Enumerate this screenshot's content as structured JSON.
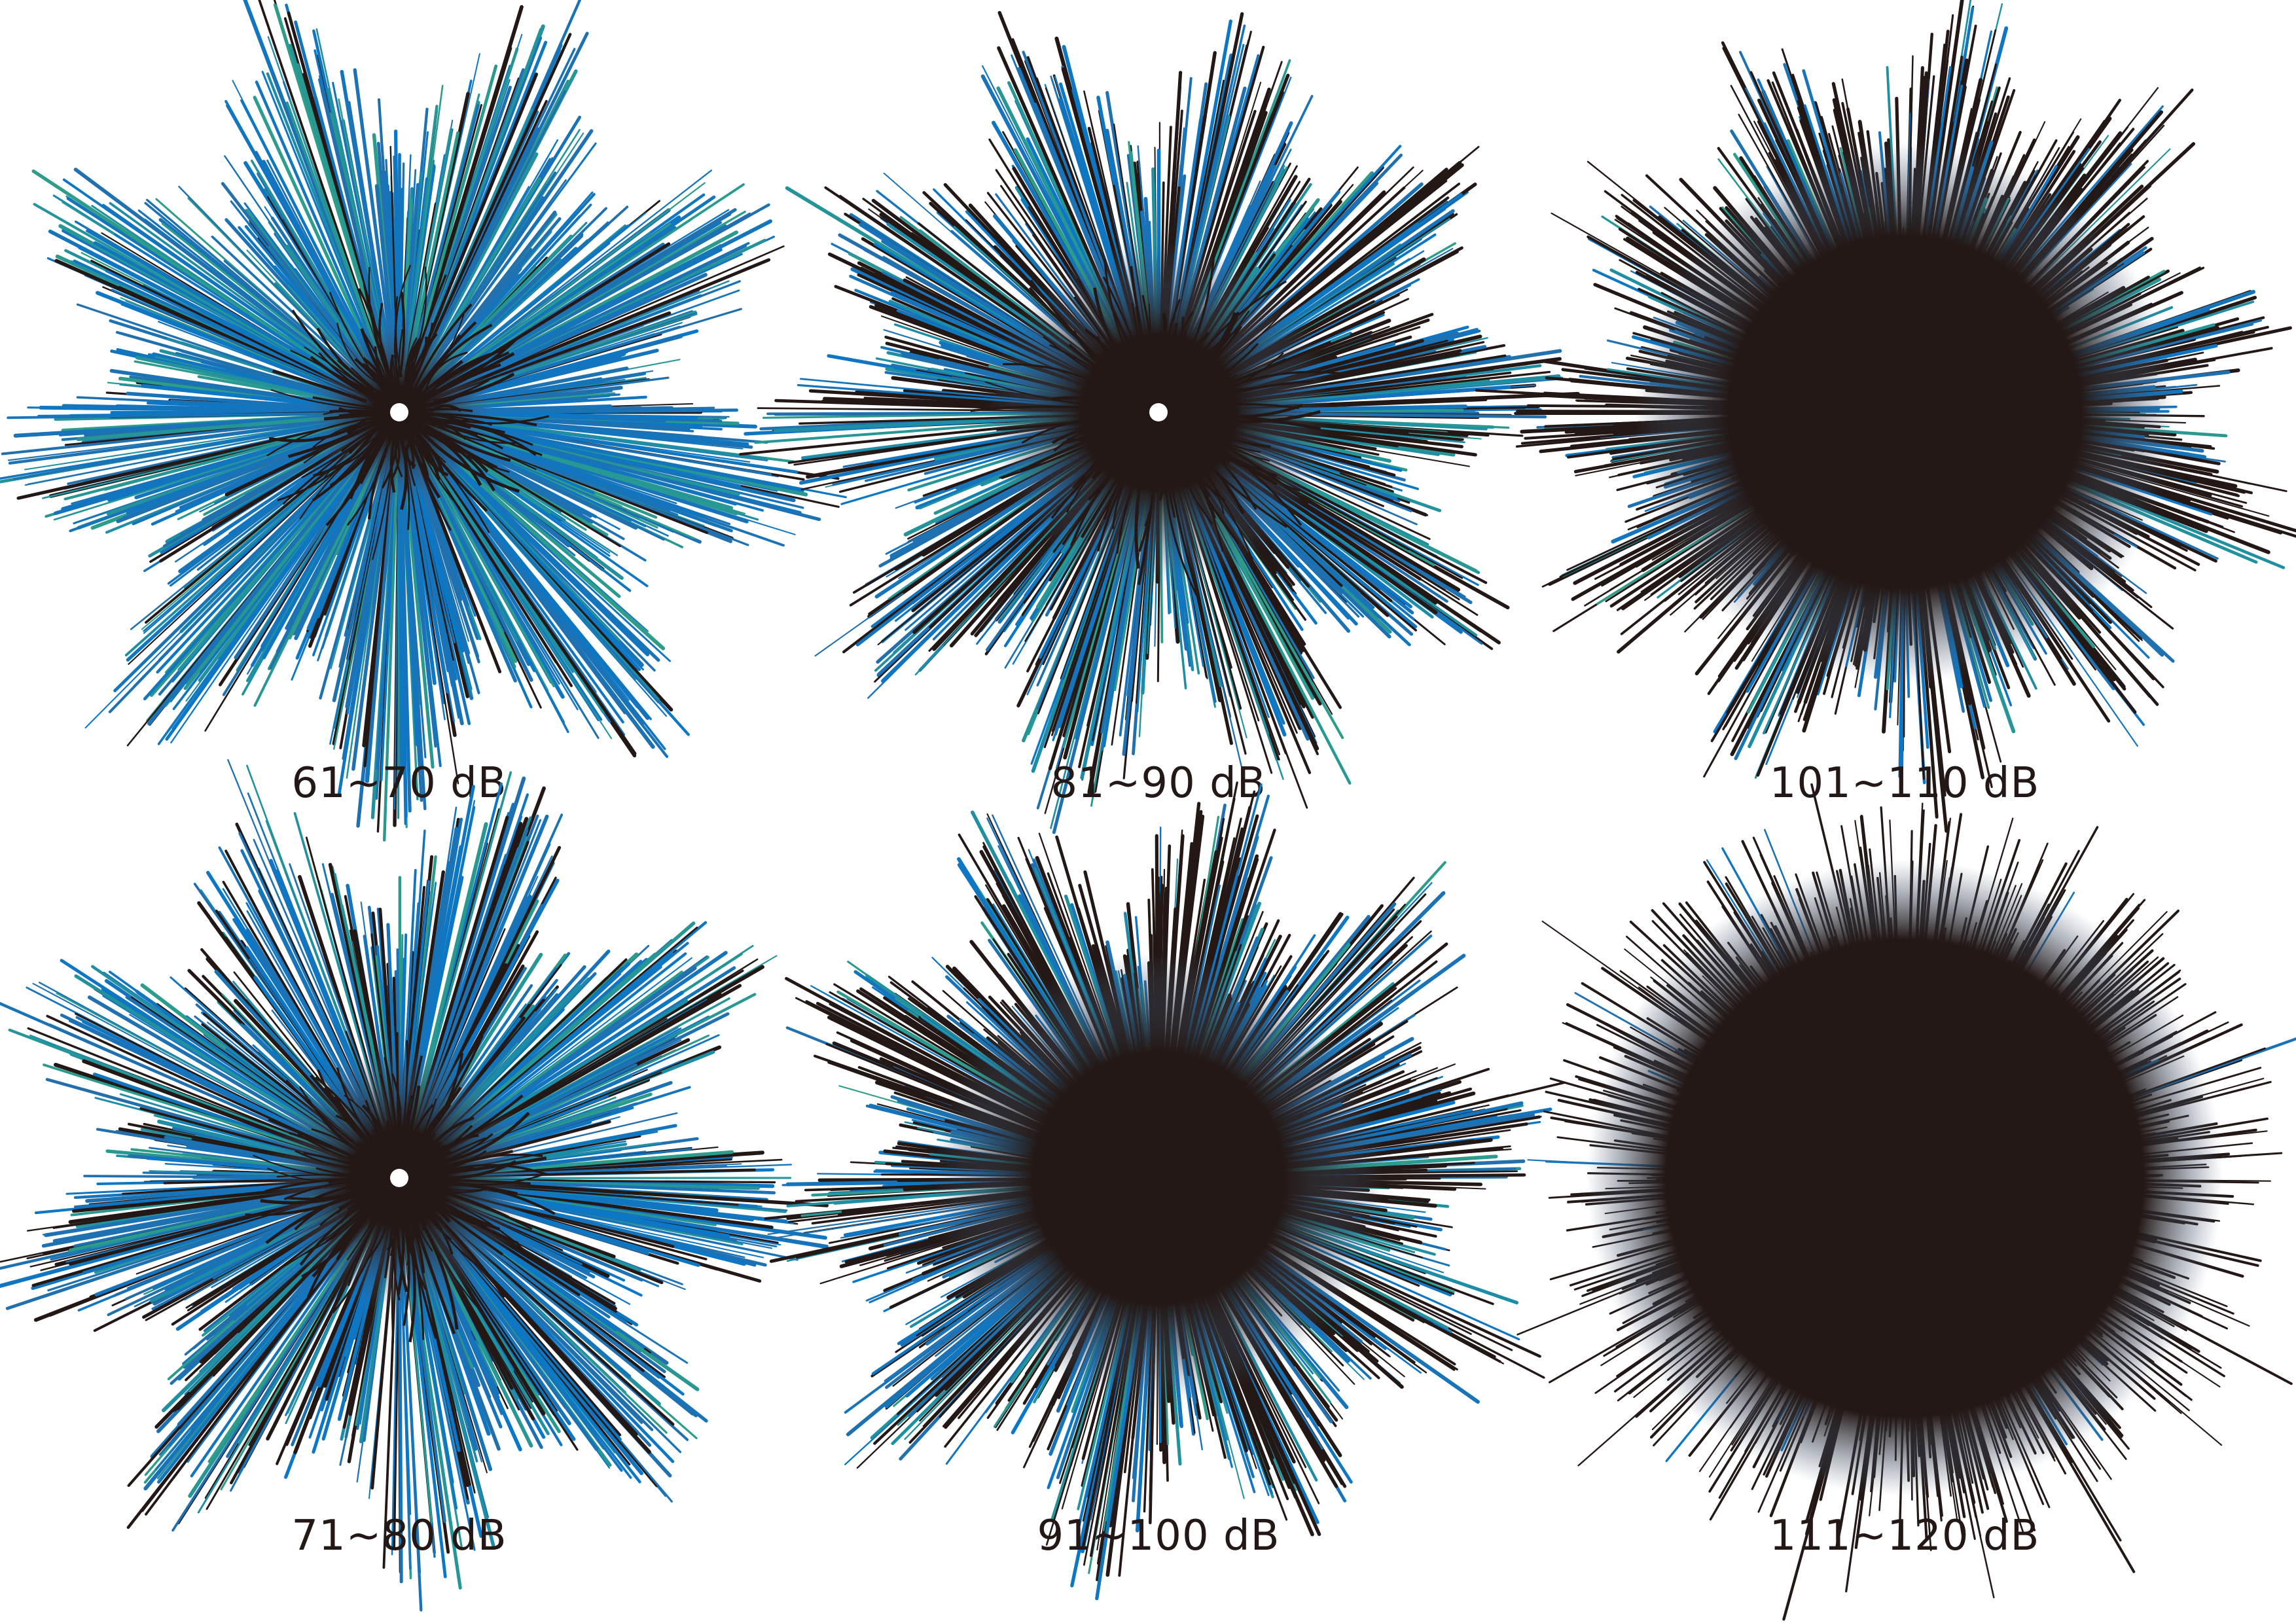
{
  "colors": {
    "tip_green": "#2e9e88",
    "blue": "#0a78c8",
    "mid_gray_blue": "#4a6280",
    "dark": "#231815",
    "background": "#ffffff"
  },
  "panels": [
    {
      "label": "61~70 dB",
      "level": 0.15,
      "spikiness": 0.55
    },
    {
      "label": "81~90 dB",
      "level": 0.45,
      "spikiness": 0.55
    },
    {
      "label": "101~110 dB",
      "level": 0.82,
      "spikiness": 0.75
    },
    {
      "label": "71~80 dB",
      "level": 0.3,
      "spikiness": 0.55
    },
    {
      "label": "91~100 dB",
      "level": 0.65,
      "spikiness": 0.6
    },
    {
      "label": "111~120 dB",
      "level": 1.0,
      "spikiness": 0.95
    }
  ]
}
